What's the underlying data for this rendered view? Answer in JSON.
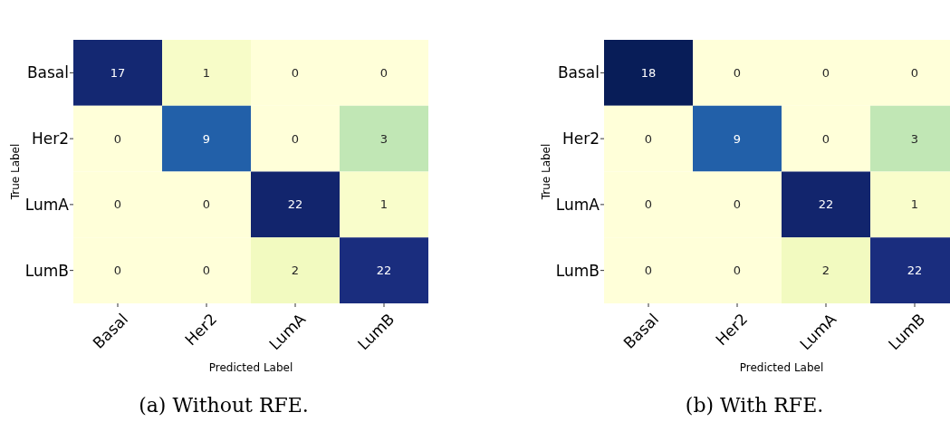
{
  "chart_data": [
    {
      "type": "heatmap",
      "data_labels": true,
      "title": "(a) Without RFE.",
      "xlabel": "Predicted Label",
      "ylabel": "True Label",
      "categories": [
        "Basal",
        "Her2",
        "LumA",
        "LumB"
      ],
      "y_categories": [
        "Basal",
        "Her2",
        "LumA",
        "LumB"
      ],
      "cells": [
        [
          17,
          1,
          0,
          0
        ],
        [
          0,
          9,
          0,
          3
        ],
        [
          0,
          0,
          22,
          1
        ],
        [
          0,
          0,
          2,
          22
        ]
      ]
    },
    {
      "type": "heatmap",
      "data_labels": true,
      "title": "(b) With RFE.",
      "xlabel": "Predicted Label",
      "ylabel": "True Label",
      "categories": [
        "Basal",
        "Her2",
        "LumA",
        "LumB"
      ],
      "y_categories": [
        "Basal",
        "Her2",
        "LumA",
        "LumB"
      ],
      "cells": [
        [
          18,
          0,
          0,
          0
        ],
        [
          0,
          9,
          0,
          3
        ],
        [
          0,
          0,
          22,
          1
        ],
        [
          0,
          0,
          2,
          22
        ]
      ]
    }
  ]
}
